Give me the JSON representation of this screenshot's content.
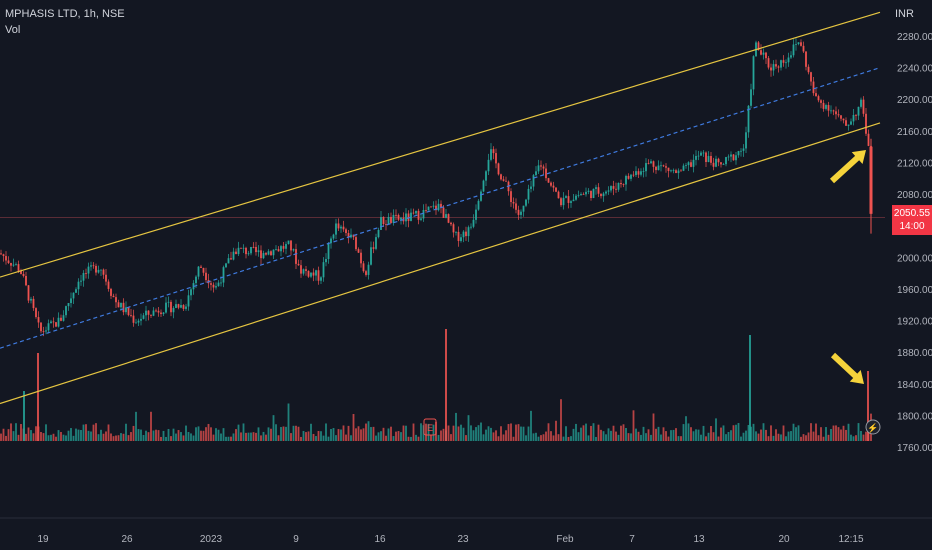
{
  "header": {
    "symbol_line": "MPHASIS LTD, 1h, NSE",
    "volume_label": "Vol"
  },
  "axis": {
    "currency": "INR"
  },
  "last_price": {
    "value": "2050.55",
    "countdown": "14:00"
  },
  "colors": {
    "background": "#131722",
    "up": "#26a69a",
    "down": "#ef5350",
    "channel": "#e5c541",
    "midline": "#3f7be0",
    "price_tag": "#f23645",
    "annotation_arrow": "#f5d33b"
  },
  "chart_data": {
    "type": "candlestick",
    "title": "MPHASIS LTD, 1h, NSE",
    "ylabel": "INR",
    "ylim": [
      1745,
      2325
    ],
    "y_ticks": [
      2280,
      2240,
      2200,
      2160,
      2120,
      2080,
      2040,
      2000,
      1960,
      1920,
      1880,
      1840,
      1800,
      1760
    ],
    "x_ticks": [
      "19",
      "26",
      "2023",
      "9",
      "16",
      "23",
      "Feb",
      "7",
      "13",
      "20",
      "12:15"
    ],
    "price_path": [
      [
        0,
        2005
      ],
      [
        20,
        1985
      ],
      [
        40,
        1905
      ],
      [
        60,
        1920
      ],
      [
        80,
        1975
      ],
      [
        100,
        1990
      ],
      [
        115,
        1945
      ],
      [
        135,
        1920
      ],
      [
        160,
        1935
      ],
      [
        185,
        1940
      ],
      [
        200,
        1990
      ],
      [
        215,
        1960
      ],
      [
        235,
        2010
      ],
      [
        260,
        2005
      ],
      [
        290,
        2015
      ],
      [
        300,
        1985
      ],
      [
        320,
        1975
      ],
      [
        335,
        2040
      ],
      [
        355,
        2020
      ],
      [
        365,
        1980
      ],
      [
        380,
        2045
      ],
      [
        410,
        2050
      ],
      [
        440,
        2065
      ],
      [
        455,
        2025
      ],
      [
        470,
        2035
      ],
      [
        490,
        2135
      ],
      [
        520,
        2050
      ],
      [
        540,
        2120
      ],
      [
        560,
        2070
      ],
      [
        580,
        2080
      ],
      [
        610,
        2085
      ],
      [
        650,
        2120
      ],
      [
        680,
        2105
      ],
      [
        700,
        2130
      ],
      [
        720,
        2115
      ],
      [
        745,
        2140
      ],
      [
        755,
        2270
      ],
      [
        770,
        2240
      ],
      [
        785,
        2250
      ],
      [
        800,
        2275
      ],
      [
        815,
        2200
      ],
      [
        830,
        2190
      ],
      [
        845,
        2165
      ],
      [
        862,
        2195
      ],
      [
        868,
        2145
      ],
      [
        873,
        2050
      ]
    ],
    "channel": {
      "upper": [
        [
          0,
          1975
        ],
        [
          880,
          2310
        ]
      ],
      "lower": [
        [
          0,
          1815
        ],
        [
          880,
          2170
        ]
      ],
      "mid": [
        [
          0,
          1885
        ],
        [
          880,
          2240
        ]
      ]
    },
    "current_price": 2050.55,
    "annotations": [
      "arrow-upper-right",
      "arrow-lower-right"
    ]
  }
}
